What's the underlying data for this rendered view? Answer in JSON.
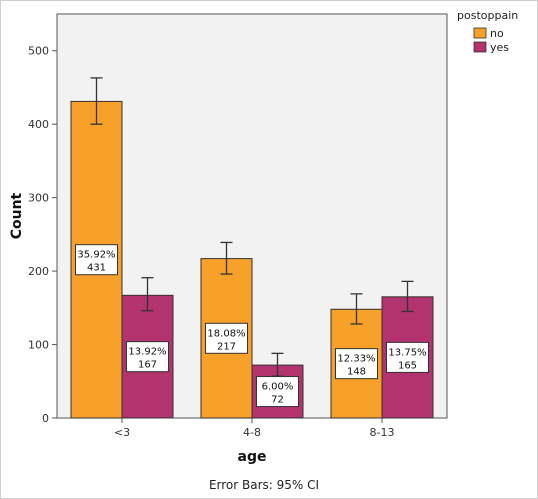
{
  "chart_data": {
    "type": "bar",
    "categories": [
      "<3",
      "4-8",
      "8-13"
    ],
    "series": [
      {
        "name": "no",
        "values": [
          431,
          217,
          148
        ],
        "labels": [
          "35.92%\n431",
          "18.08%\n217",
          "12.33%\n148"
        ],
        "ci_low": [
          400,
          196,
          128
        ],
        "ci_high": [
          463,
          239,
          169
        ]
      },
      {
        "name": "yes",
        "values": [
          167,
          72,
          165
        ],
        "labels": [
          "13.92%\n167",
          "6.00%\n72",
          "13.75%\n165"
        ],
        "ci_low": [
          146,
          57,
          145
        ],
        "ci_high": [
          191,
          88,
          186
        ]
      }
    ],
    "colors": [
      "#f7a12a",
      "#b2336e"
    ],
    "xlabel": "age",
    "ylabel": "Count",
    "ylim": [
      0,
      550
    ],
    "yticks": [
      "0",
      "100",
      "200",
      "300",
      "400",
      "500"
    ],
    "legend_title": "postoppain",
    "legend_position": "right",
    "footnote": "Error Bars: 95% CI",
    "grid": false,
    "plot_background": "#f2f2f2"
  }
}
